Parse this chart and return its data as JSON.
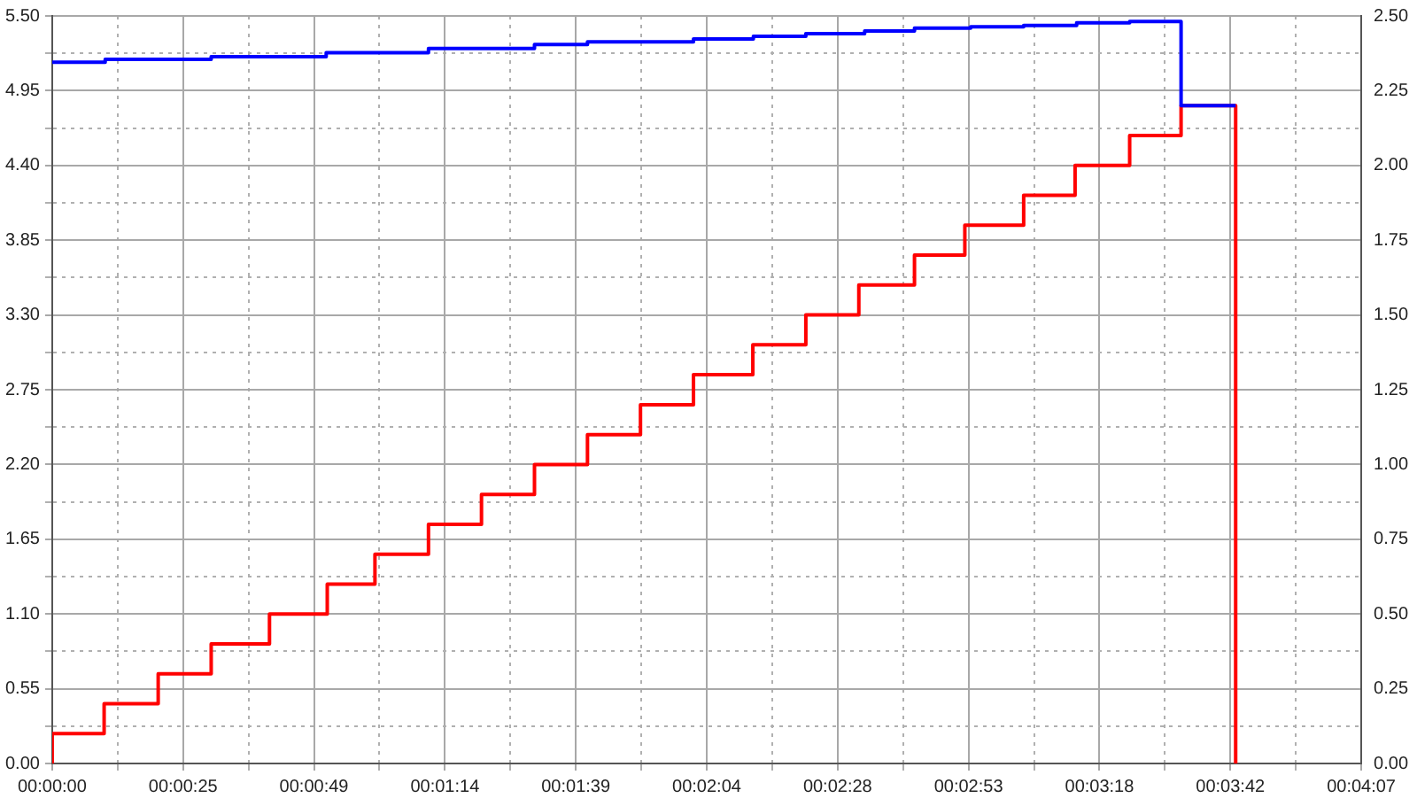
{
  "chart_data": {
    "type": "step",
    "xlim": [
      0,
      247
    ],
    "xticks": [
      {
        "value": 0,
        "label": "00:00:00"
      },
      {
        "value": 12.35,
        "label": null
      },
      {
        "value": 24.7,
        "label": "00:00:25"
      },
      {
        "value": 37.05,
        "label": null
      },
      {
        "value": 49.4,
        "label": "00:00:49"
      },
      {
        "value": 61.75,
        "label": null
      },
      {
        "value": 74.1,
        "label": "00:01:14"
      },
      {
        "value": 86.45,
        "label": null
      },
      {
        "value": 98.8,
        "label": "00:01:39"
      },
      {
        "value": 111.15,
        "label": null
      },
      {
        "value": 123.5,
        "label": "00:02:04"
      },
      {
        "value": 135.85,
        "label": null
      },
      {
        "value": 148.2,
        "label": "00:02:28"
      },
      {
        "value": 160.55,
        "label": null
      },
      {
        "value": 172.9,
        "label": "00:02:53"
      },
      {
        "value": 185.25,
        "label": null
      },
      {
        "value": 197.6,
        "label": "00:03:18"
      },
      {
        "value": 209.95,
        "label": null
      },
      {
        "value": 222.3,
        "label": "00:03:42"
      },
      {
        "value": 234.65,
        "label": null
      },
      {
        "value": 247,
        "label": "00:04:07"
      }
    ],
    "ylim": [
      0,
      5.5
    ],
    "yticks": [
      {
        "value": 0,
        "label": "0.00"
      },
      {
        "value": 0.275,
        "label": null
      },
      {
        "value": 0.55,
        "label": "0.55"
      },
      {
        "value": 0.825,
        "label": null
      },
      {
        "value": 1.1,
        "label": "1.10"
      },
      {
        "value": 1.375,
        "label": null
      },
      {
        "value": 1.65,
        "label": "1.65"
      },
      {
        "value": 1.925,
        "label": null
      },
      {
        "value": 2.2,
        "label": "2.20"
      },
      {
        "value": 2.475,
        "label": null
      },
      {
        "value": 2.75,
        "label": "2.75"
      },
      {
        "value": 3.025,
        "label": null
      },
      {
        "value": 3.3,
        "label": "3.30"
      },
      {
        "value": 3.575,
        "label": null
      },
      {
        "value": 3.85,
        "label": "3.85"
      },
      {
        "value": 4.125,
        "label": null
      },
      {
        "value": 4.4,
        "label": "4.40"
      },
      {
        "value": 4.675,
        "label": null
      },
      {
        "value": 4.95,
        "label": "4.95"
      },
      {
        "value": 5.225,
        "label": null
      },
      {
        "value": 5.5,
        "label": "5.50"
      }
    ],
    "y2lim": [
      0,
      2.5
    ],
    "y2ticks": [
      {
        "value": 0,
        "label": "0.00"
      },
      {
        "value": 0.25,
        "label": "0.25"
      },
      {
        "value": 0.5,
        "label": "0.50"
      },
      {
        "value": 0.75,
        "label": "0.75"
      },
      {
        "value": 1,
        "label": "1.00"
      },
      {
        "value": 1.25,
        "label": "1.25"
      },
      {
        "value": 1.5,
        "label": "1.50"
      },
      {
        "value": 1.75,
        "label": "1.75"
      },
      {
        "value": 2,
        "label": "2.00"
      },
      {
        "value": 2.25,
        "label": "2.25"
      },
      {
        "value": 2.5,
        "label": "2.50"
      }
    ],
    "grid": true,
    "series": [
      {
        "color": "#0000ff",
        "x": [
          0,
          10,
          30,
          51.7,
          71,
          91,
          101,
          121,
          132.3,
          142.2,
          153.3,
          162.7,
          173.3,
          183.3,
          193.3,
          203.3,
          213,
          223.3
        ],
        "values": [
          5.16,
          5.18,
          5.2,
          5.23,
          5.26,
          5.29,
          5.31,
          5.33,
          5.35,
          5.37,
          5.39,
          5.41,
          5.42,
          5.43,
          5.45,
          5.46,
          4.84,
          4.84
        ]
      },
      {
        "color": "#ff0000",
        "axis": "y2",
        "x": [
          0,
          0,
          9.8,
          20,
          30,
          41,
          51.9,
          60.9,
          71,
          81,
          91,
          101,
          111,
          121,
          132.2,
          142.2,
          152.2,
          162.7,
          172.2,
          183.3,
          193,
          203.3,
          213,
          223.3
        ],
        "values": [
          0,
          0.1,
          0.2,
          0.3,
          0.4,
          0.5,
          0.6,
          0.7,
          0.8,
          0.9,
          1.0,
          1.1,
          1.2,
          1.3,
          1.4,
          1.5,
          1.6,
          1.7,
          1.8,
          1.9,
          2.0,
          2.1,
          2.2,
          0
        ]
      }
    ]
  }
}
